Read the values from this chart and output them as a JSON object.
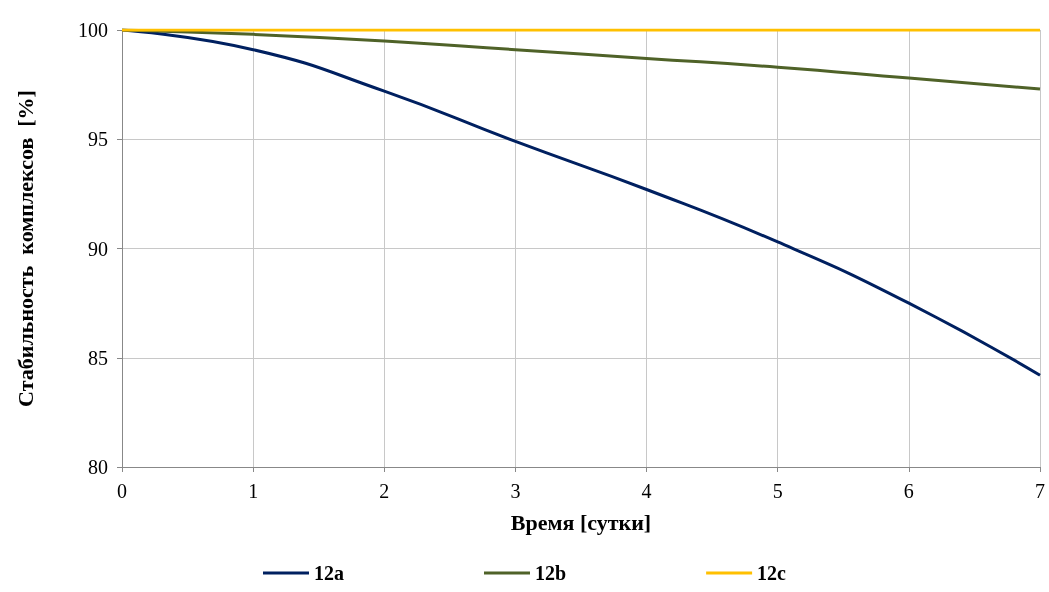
{
  "chart_data": {
    "type": "line",
    "xlabel": "Время [сутки]",
    "ylabel": "Стабильность  комплексов  [%]",
    "x": [
      0,
      1,
      2,
      3,
      4,
      5,
      6,
      7
    ],
    "series": [
      {
        "name": "12a",
        "color": "#002060",
        "values": [
          100,
          99.1,
          97.2,
          94.9,
          92.7,
          90.3,
          87.5,
          84.2
        ]
      },
      {
        "name": "12b",
        "color": "#4f6228",
        "values": [
          100,
          99.8,
          99.5,
          99.1,
          98.7,
          98.3,
          97.8,
          97.3
        ]
      },
      {
        "name": "12c",
        "color": "#ffc000",
        "values": [
          100,
          100,
          100,
          100,
          100,
          100,
          100,
          100
        ]
      }
    ],
    "xlim": [
      0,
      7
    ],
    "xticks": [
      0,
      1,
      2,
      3,
      4,
      5,
      6,
      7
    ],
    "ylim": [
      80,
      100
    ],
    "yticks": [
      80,
      85,
      90,
      95,
      100
    ],
    "grid": true,
    "legend": "bottom",
    "marker": "none",
    "line_style": "solid"
  }
}
